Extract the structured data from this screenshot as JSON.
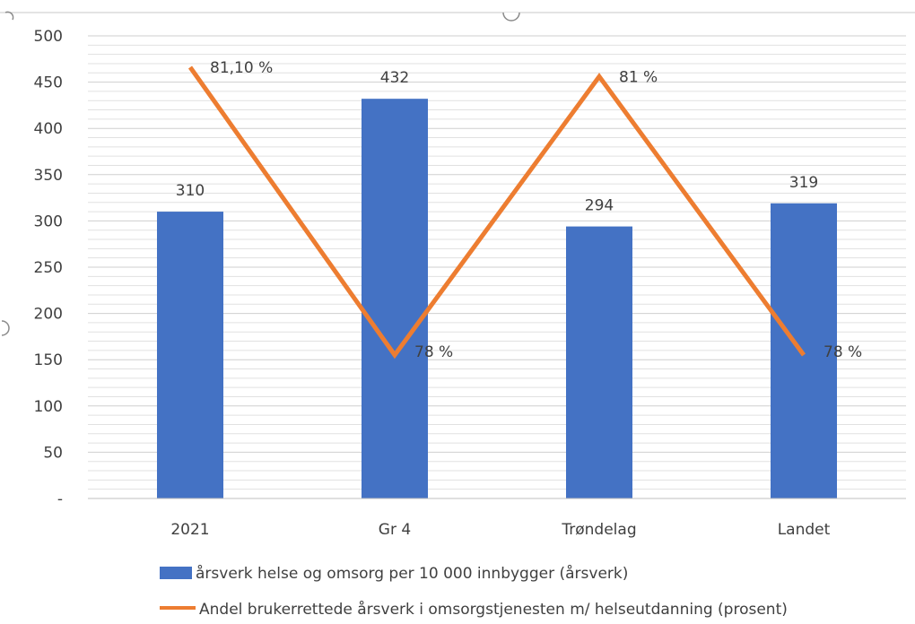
{
  "chart_data": {
    "type": "bar",
    "categories": [
      "2021",
      "Gr 4",
      "Trøndelag",
      "Landet"
    ],
    "y_ticks": [
      "-",
      "50",
      "100",
      "150",
      "200",
      "250",
      "300",
      "350",
      "400",
      "450",
      "500"
    ],
    "ylim": [
      0,
      500
    ],
    "grid": true,
    "legend_position": "bottom",
    "series": [
      {
        "name": "årsverk helse og omsorg per 10 000 innbygger (årsverk)",
        "type": "bar",
        "axis": "left",
        "color": "#4472C4",
        "values": [
          310,
          432,
          294,
          319
        ],
        "labels": [
          "310",
          "432",
          "294",
          "319"
        ]
      },
      {
        "name": "Andel brukerrettede årsverk i omsorgstjenesten m/ helseutdanning (prosent)",
        "type": "line",
        "axis": "secondary",
        "color": "#ED7D31",
        "values": [
          81.1,
          78.0,
          81.0,
          78.0
        ],
        "labels": [
          "81,10 %",
          "78 %",
          "81 %",
          "78 %"
        ]
      }
    ]
  }
}
